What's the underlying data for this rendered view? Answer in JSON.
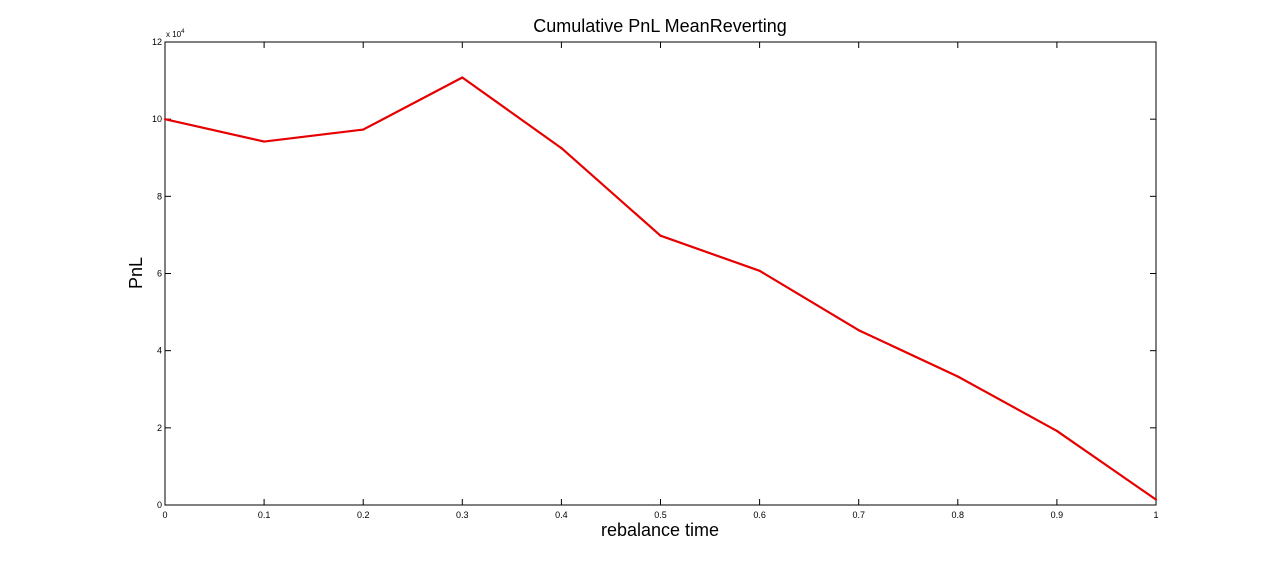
{
  "chart_data": {
    "type": "line",
    "title": "Cumulative PnL MeanReverting",
    "xlabel": "rebalance time",
    "ylabel": "PnL",
    "y_multiplier": {
      "base": "x 10",
      "exponent": "4"
    },
    "xlim": [
      0,
      1
    ],
    "ylim": [
      0,
      12
    ],
    "x_ticks": [
      0,
      0.1,
      0.2,
      0.3,
      0.4,
      0.5,
      0.6,
      0.7,
      0.8,
      0.9,
      1
    ],
    "x_tick_labels": [
      "0",
      "0.1",
      "0.2",
      "0.3",
      "0.4",
      "0.5",
      "0.6",
      "0.7",
      "0.8",
      "0.9",
      "1"
    ],
    "y_ticks": [
      0,
      2,
      4,
      6,
      8,
      10,
      12
    ],
    "y_tick_labels": [
      "0",
      "2",
      "4",
      "6",
      "8",
      "10",
      "12"
    ],
    "grid": false,
    "series": [
      {
        "x": [
          0,
          0.1,
          0.2,
          0.3,
          0.4,
          0.5,
          0.6,
          0.7,
          0.8,
          0.9,
          1
        ],
        "values": [
          10.0,
          9.42,
          9.73,
          11.08,
          9.25,
          6.98,
          6.07,
          4.53,
          3.33,
          1.92,
          0.14
        ],
        "color": "#e60000"
      }
    ]
  }
}
